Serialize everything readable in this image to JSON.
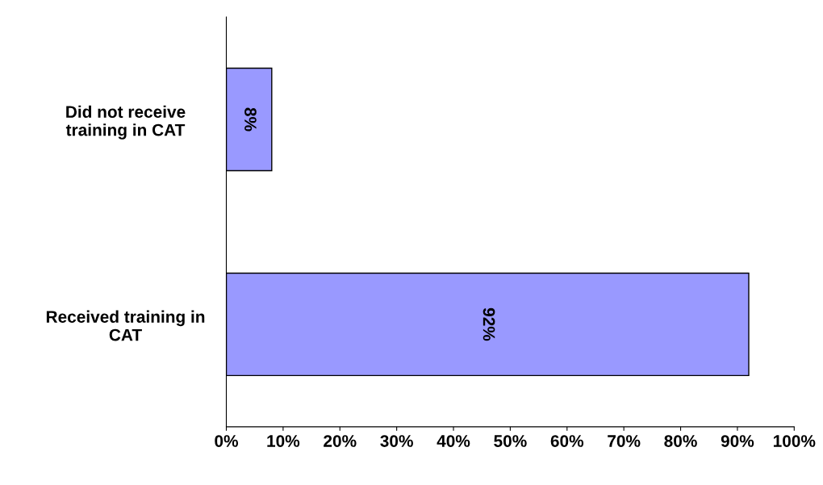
{
  "chart_data": {
    "type": "bar",
    "orientation": "horizontal",
    "categories": [
      "Did not receive\ntraining in CAT",
      "Received training in\nCAT"
    ],
    "values": [
      8,
      92
    ],
    "value_labels": [
      "8%",
      "92%"
    ],
    "color": "#9999ff",
    "xlim": [
      0,
      100
    ],
    "xticks": [
      {
        "value": 0,
        "label": "0%"
      },
      {
        "value": 10,
        "label": "10%"
      },
      {
        "value": 20,
        "label": "20%"
      },
      {
        "value": 30,
        "label": "30%"
      },
      {
        "value": 40,
        "label": "40%"
      },
      {
        "value": 50,
        "label": "50%"
      },
      {
        "value": 60,
        "label": "60%"
      },
      {
        "value": 70,
        "label": "70%"
      },
      {
        "value": 80,
        "label": "80%"
      },
      {
        "value": 90,
        "label": "90%"
      },
      {
        "value": 100,
        "label": "100%"
      }
    ],
    "grid": false,
    "legend": false
  }
}
